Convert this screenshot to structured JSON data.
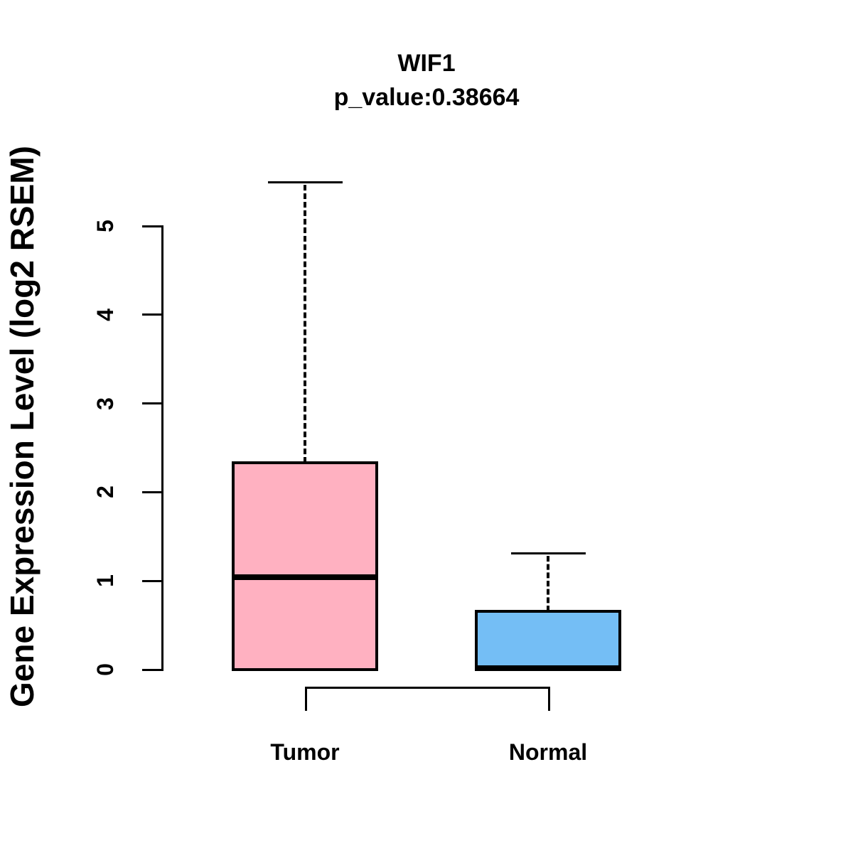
{
  "title": "WIF1",
  "subtitle": "p_value:0.38664",
  "ylabel": "Gene Expression Level (log2 RSEM)",
  "colors": {
    "tumor_box": "#FFB1C1",
    "normal_box": "#74BEF5",
    "line": "#000000",
    "background": "#FFFFFF",
    "text": "#000000"
  },
  "chart_data": {
    "type": "boxplot",
    "title": "WIF1",
    "subtitle": "p_value:0.38664",
    "p_value": "0.38664",
    "xlabel": "",
    "ylabel": "Gene Expression Level (log2 RSEM)",
    "categories": [
      "Tumor",
      "Normal"
    ],
    "yticks": [
      0,
      1,
      2,
      3,
      4,
      5
    ],
    "ylim": [
      0,
      5.6
    ],
    "grid": false,
    "legend": "none",
    "series": [
      {
        "name": "Tumor",
        "color": "#FFB1C1",
        "whisker_low": 0,
        "q1": 0,
        "median": 1.04,
        "q3": 2.33,
        "whisker_high": 5.49
      },
      {
        "name": "Normal",
        "color": "#74BEF5",
        "whisker_low": 0,
        "q1": 0,
        "median": 0.02,
        "q3": 0.66,
        "whisker_high": 1.31
      }
    ],
    "comparison_bracket": {
      "from": "Tumor",
      "to": "Normal"
    }
  }
}
